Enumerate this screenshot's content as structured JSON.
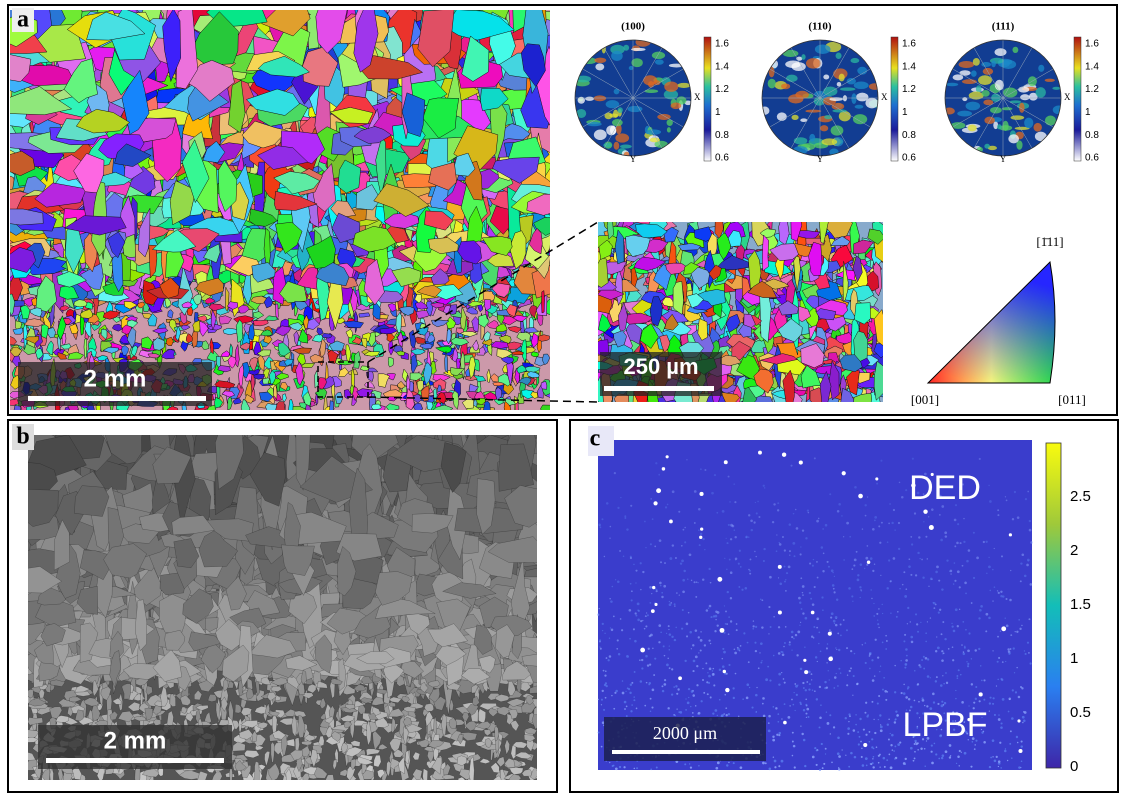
{
  "panel_a": {
    "label": "a",
    "ebsd_scale_bar": "2 mm",
    "inset_scale_bar": "250 µm",
    "pole_figures": [
      {
        "title": "(100)",
        "x_label": "X",
        "y_label": "Y",
        "colorbar_ticks": [
          "1.6",
          "1.4",
          "1.2",
          "1",
          "0.8",
          "0.6"
        ]
      },
      {
        "title": "(110)",
        "x_label": "X",
        "y_label": "Y",
        "colorbar_ticks": [
          "1.6",
          "1.4",
          "1.2",
          "1",
          "0.8",
          "0.6"
        ]
      },
      {
        "title": "(111)",
        "x_label": "X",
        "y_label": "Y",
        "colorbar_ticks": [
          "1.6",
          "1.4",
          "1.2",
          "1",
          "0.8",
          "0.6"
        ]
      }
    ],
    "ipf_corners": {
      "top": "[1̄11]",
      "left": "[001]",
      "right": "[011]"
    }
  },
  "panel_b": {
    "label": "b",
    "scale_bar": "2 mm"
  },
  "panel_c": {
    "label": "c",
    "scale_bar": "2000 μm",
    "region_labels": [
      "DED",
      "LPBF"
    ],
    "colorbar_ticks": [
      "2.5",
      "2",
      "1.5",
      "1",
      "0.5",
      "0"
    ]
  }
}
